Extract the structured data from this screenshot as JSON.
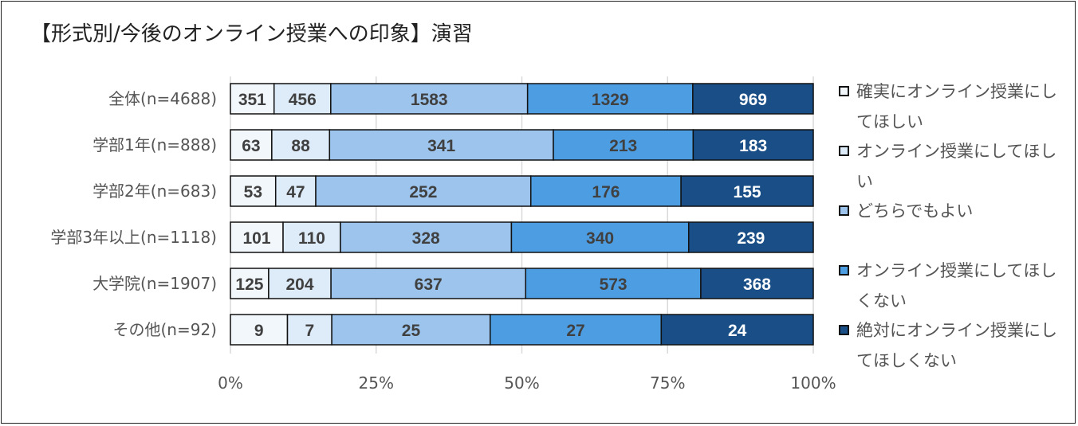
{
  "chart_data": {
    "type": "bar",
    "orientation": "horizontal",
    "stacked": "percent",
    "title": "【形式別/今後のオンライン授業への印象】演習",
    "categories": [
      "全体(n=4688)",
      "学部1年(n=888)",
      "学部2年(n=683)",
      "学部3年以上(n=1118)",
      "大学院(n=1907)",
      "その他(n=92)"
    ],
    "series": [
      {
        "name": "確実にオンライン授業にしてほしい",
        "color": "#f2f7fc",
        "label_color": "#404040",
        "values": [
          351,
          63,
          53,
          101,
          125,
          9
        ]
      },
      {
        "name": "オンライン授業にしてほしい",
        "color": "#deebf8",
        "label_color": "#404040",
        "values": [
          456,
          88,
          47,
          110,
          204,
          7
        ]
      },
      {
        "name": "どちらでもよい",
        "color": "#9cc4ec",
        "label_color": "#404040",
        "values": [
          1583,
          341,
          252,
          328,
          637,
          25
        ]
      },
      {
        "name": "オンライン授業にしてほしくない",
        "color": "#4d9de2",
        "label_color": "#404040",
        "values": [
          1329,
          213,
          176,
          340,
          573,
          27
        ]
      },
      {
        "name": "絶対にオンライン授業にしてほしくない",
        "color": "#1a4e86",
        "label_color": "#ffffff",
        "values": [
          969,
          183,
          155,
          239,
          368,
          24
        ]
      }
    ],
    "xticks": [
      "0%",
      "25%",
      "50%",
      "75%",
      "100%"
    ],
    "xlim": [
      0,
      100
    ],
    "grid": true,
    "legend": "right"
  }
}
